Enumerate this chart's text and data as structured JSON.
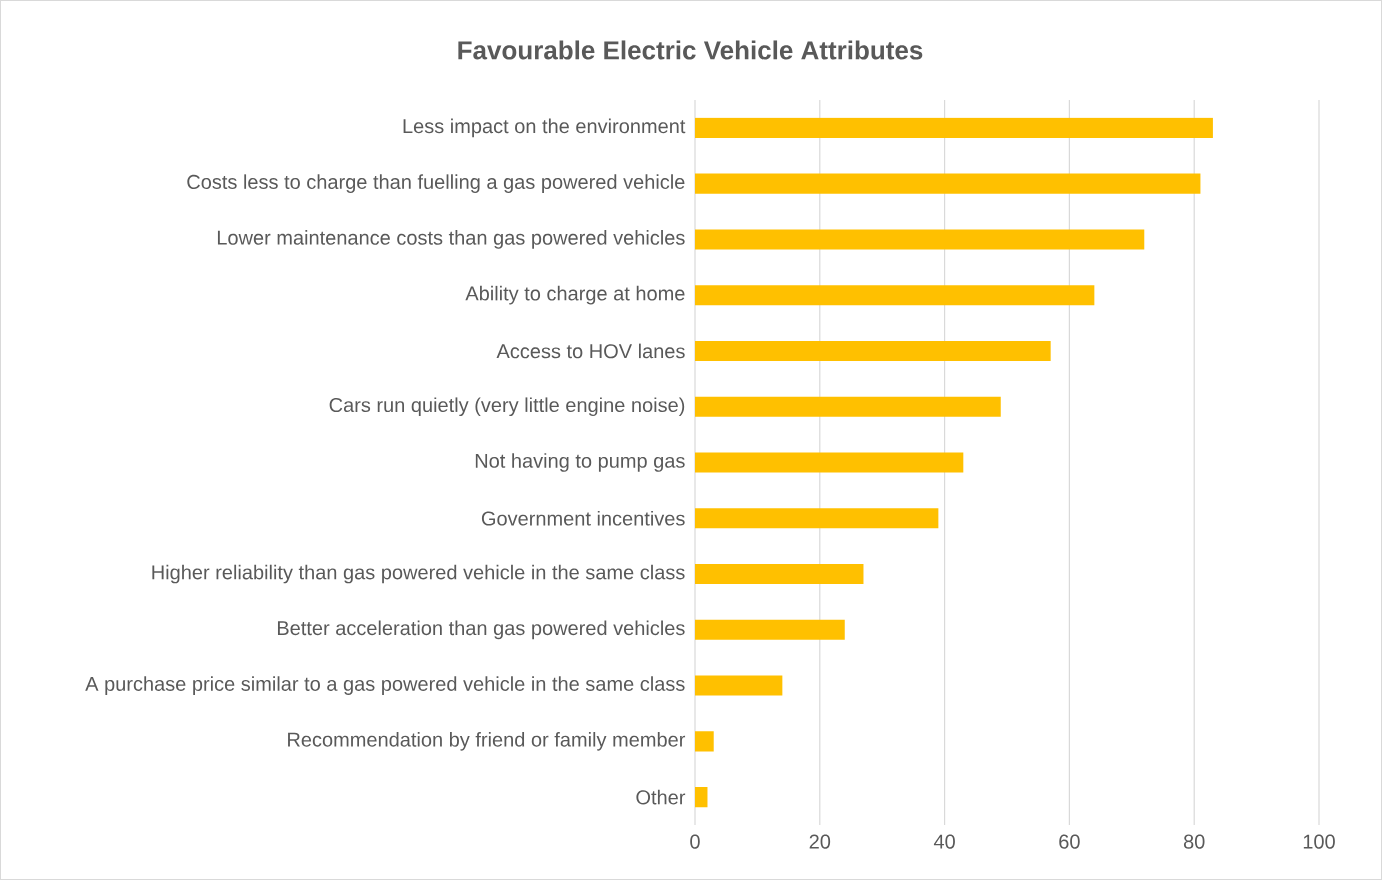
{
  "chart_data": {
    "type": "bar",
    "orientation": "horizontal",
    "title": "Favourable Electric Vehicle Attributes",
    "categories": [
      "Less impact on the environment",
      "Costs less to charge than fuelling a gas powered vehicle",
      "Lower maintenance costs than gas powered vehicles",
      "Ability to charge at home",
      "Access to HOV lanes",
      "Cars run quietly (very little engine noise)",
      "Not having to pump gas",
      "Government incentives",
      "Higher reliability than gas powered vehicle in the same class",
      "Better acceleration than gas powered vehicles",
      "A purchase price similar to a gas powered vehicle in the same class",
      "Recommendation by friend or family member",
      "Other"
    ],
    "values": [
      83,
      81,
      72,
      64,
      57,
      49,
      43,
      39,
      27,
      24,
      14,
      3,
      2
    ],
    "color": "#ffc000",
    "xlim": [
      0,
      100
    ],
    "xticks": [
      0,
      20,
      40,
      60,
      80,
      100
    ],
    "grid": "x"
  }
}
